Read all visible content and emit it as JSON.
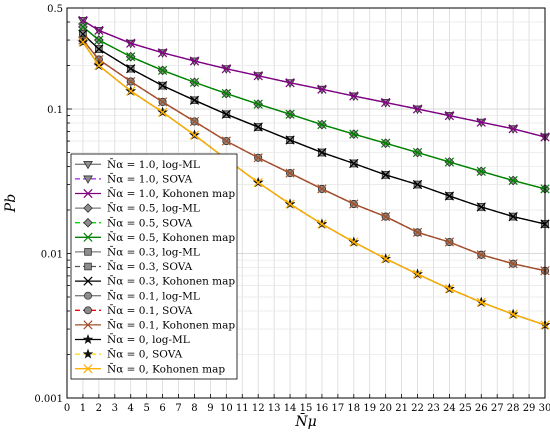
{
  "chart_data": {
    "type": "line",
    "xlabel": "N̄μ",
    "ylabel": "Pb",
    "xlim": [
      0,
      30
    ],
    "ylim": [
      0.001,
      0.5
    ],
    "y_scale": "log",
    "grid": true,
    "legend_position": "bottom-left",
    "x_ticks": [
      0,
      1,
      2,
      3,
      4,
      5,
      6,
      7,
      8,
      9,
      10,
      11,
      12,
      13,
      14,
      15,
      16,
      17,
      18,
      19,
      20,
      21,
      22,
      23,
      24,
      25,
      26,
      27,
      28,
      29,
      30
    ],
    "x_tick_labels": [
      "0",
      "1",
      "2",
      "3",
      "4",
      "5",
      "6",
      "7",
      "8",
      "9",
      "10",
      "11",
      "12",
      "13",
      "14",
      "15",
      "16",
      "17",
      "18",
      "19",
      "20",
      "21",
      "22",
      "23",
      "24",
      "25",
      "26",
      "27",
      "28",
      "29",
      "30"
    ],
    "y_ticks": [
      0.5,
      0.1,
      0.01,
      0.001
    ],
    "y_tick_labels": [
      "0.5",
      "0.1",
      "0.01",
      "0.001"
    ],
    "x": [
      1,
      2,
      4,
      6,
      8,
      10,
      12,
      14,
      16,
      18,
      20,
      22,
      24,
      26,
      28,
      30
    ],
    "series": [
      {
        "name": "N̄α = 1.0, log-ML",
        "color": "#7f7f7f",
        "line": "solid",
        "marker": "triangle-down",
        "values": [
          0.41,
          0.35,
          0.285,
          0.245,
          0.215,
          0.19,
          0.17,
          0.152,
          0.137,
          0.123,
          0.111,
          0.1,
          0.09,
          0.081,
          0.073,
          0.064
        ]
      },
      {
        "name": "N̄α = 1.0, SOVA",
        "color": "#a020f0",
        "line": "dashed",
        "marker": "triangle-down",
        "values": [
          0.41,
          0.35,
          0.285,
          0.245,
          0.215,
          0.19,
          0.17,
          0.152,
          0.137,
          0.123,
          0.111,
          0.1,
          0.09,
          0.081,
          0.073,
          0.064
        ]
      },
      {
        "name": "N̄α = 1.0, Kohonen map",
        "color": "#800080",
        "line": "solid",
        "marker": "x",
        "values": [
          0.41,
          0.35,
          0.285,
          0.245,
          0.215,
          0.19,
          0.17,
          0.152,
          0.137,
          0.123,
          0.111,
          0.1,
          0.09,
          0.081,
          0.073,
          0.064
        ]
      },
      {
        "name": "N̄α = 0.5, log-ML",
        "color": "#7f7f7f",
        "line": "solid",
        "marker": "diamond",
        "values": [
          0.37,
          0.3,
          0.23,
          0.185,
          0.153,
          0.128,
          0.108,
          0.092,
          0.078,
          0.067,
          0.058,
          0.05,
          0.043,
          0.037,
          0.032,
          0.028
        ]
      },
      {
        "name": "N̄α = 0.5, SOVA",
        "color": "#00dd00",
        "line": "dashed",
        "marker": "diamond",
        "values": [
          0.37,
          0.3,
          0.23,
          0.185,
          0.153,
          0.128,
          0.108,
          0.092,
          0.078,
          0.067,
          0.058,
          0.05,
          0.043,
          0.037,
          0.032,
          0.028
        ]
      },
      {
        "name": "N̄α = 0.5, Kohonen map",
        "color": "#008000",
        "line": "solid",
        "marker": "x",
        "values": [
          0.37,
          0.3,
          0.23,
          0.185,
          0.153,
          0.128,
          0.108,
          0.092,
          0.078,
          0.067,
          0.058,
          0.05,
          0.043,
          0.037,
          0.032,
          0.028
        ]
      },
      {
        "name": "N̄α = 0.3, log-ML",
        "color": "#7f7f7f",
        "line": "solid",
        "marker": "square",
        "values": [
          0.33,
          0.26,
          0.19,
          0.145,
          0.115,
          0.092,
          0.075,
          0.061,
          0.05,
          0.042,
          0.035,
          0.03,
          0.025,
          0.021,
          0.018,
          0.016
        ]
      },
      {
        "name": "N̄α = 0.3, SOVA",
        "color": "#555555",
        "line": "dashed",
        "marker": "square",
        "values": [
          0.33,
          0.26,
          0.19,
          0.145,
          0.115,
          0.092,
          0.075,
          0.061,
          0.05,
          0.042,
          0.035,
          0.03,
          0.025,
          0.021,
          0.018,
          0.016
        ]
      },
      {
        "name": "N̄α = 0.3, Kohonen map",
        "color": "#000000",
        "line": "solid",
        "marker": "x",
        "values": [
          0.33,
          0.26,
          0.19,
          0.145,
          0.115,
          0.092,
          0.075,
          0.061,
          0.05,
          0.042,
          0.035,
          0.03,
          0.025,
          0.021,
          0.018,
          0.016
        ]
      },
      {
        "name": "N̄α = 0.1, log-ML",
        "color": "#7f7f7f",
        "line": "solid",
        "marker": "circle",
        "values": [
          0.3,
          0.22,
          0.155,
          0.112,
          0.082,
          0.06,
          0.046,
          0.036,
          0.028,
          0.022,
          0.018,
          0.014,
          0.012,
          0.0098,
          0.0085,
          0.0076
        ]
      },
      {
        "name": "N̄α = 0.1, SOVA",
        "color": "#ff0000",
        "line": "dashed",
        "marker": "circle",
        "values": [
          0.3,
          0.22,
          0.155,
          0.112,
          0.082,
          0.06,
          0.046,
          0.036,
          0.028,
          0.022,
          0.018,
          0.014,
          0.012,
          0.0098,
          0.0085,
          0.0076
        ]
      },
      {
        "name": "N̄α = 0.1, Kohonen map",
        "color": "#a0522d",
        "line": "solid",
        "marker": "x",
        "values": [
          0.3,
          0.22,
          0.155,
          0.112,
          0.082,
          0.06,
          0.046,
          0.036,
          0.028,
          0.022,
          0.018,
          0.014,
          0.012,
          0.0098,
          0.0085,
          0.0076
        ]
      },
      {
        "name": "N̄α = 0, log-ML",
        "color": "#000000",
        "line": "solid",
        "marker": "star",
        "values": [
          0.29,
          0.2,
          0.133,
          0.095,
          0.066,
          0.045,
          0.031,
          0.022,
          0.016,
          0.012,
          0.0092,
          0.0072,
          0.0057,
          0.0046,
          0.0038,
          0.0032
        ]
      },
      {
        "name": "N̄α = 0, SOVA",
        "color": "#ffd700",
        "line": "dashed",
        "marker": "star",
        "values": [
          0.29,
          0.2,
          0.133,
          0.095,
          0.066,
          0.045,
          0.031,
          0.022,
          0.016,
          0.012,
          0.0092,
          0.0072,
          0.0057,
          0.0046,
          0.0038,
          0.0032
        ]
      },
      {
        "name": "N̄α = 0, Kohonen map",
        "color": "#ffb000",
        "line": "solid",
        "marker": "x",
        "values": [
          0.29,
          0.2,
          0.133,
          0.095,
          0.066,
          0.045,
          0.031,
          0.022,
          0.016,
          0.012,
          0.0092,
          0.0072,
          0.0057,
          0.0046,
          0.0038,
          0.0032
        ]
      }
    ]
  }
}
